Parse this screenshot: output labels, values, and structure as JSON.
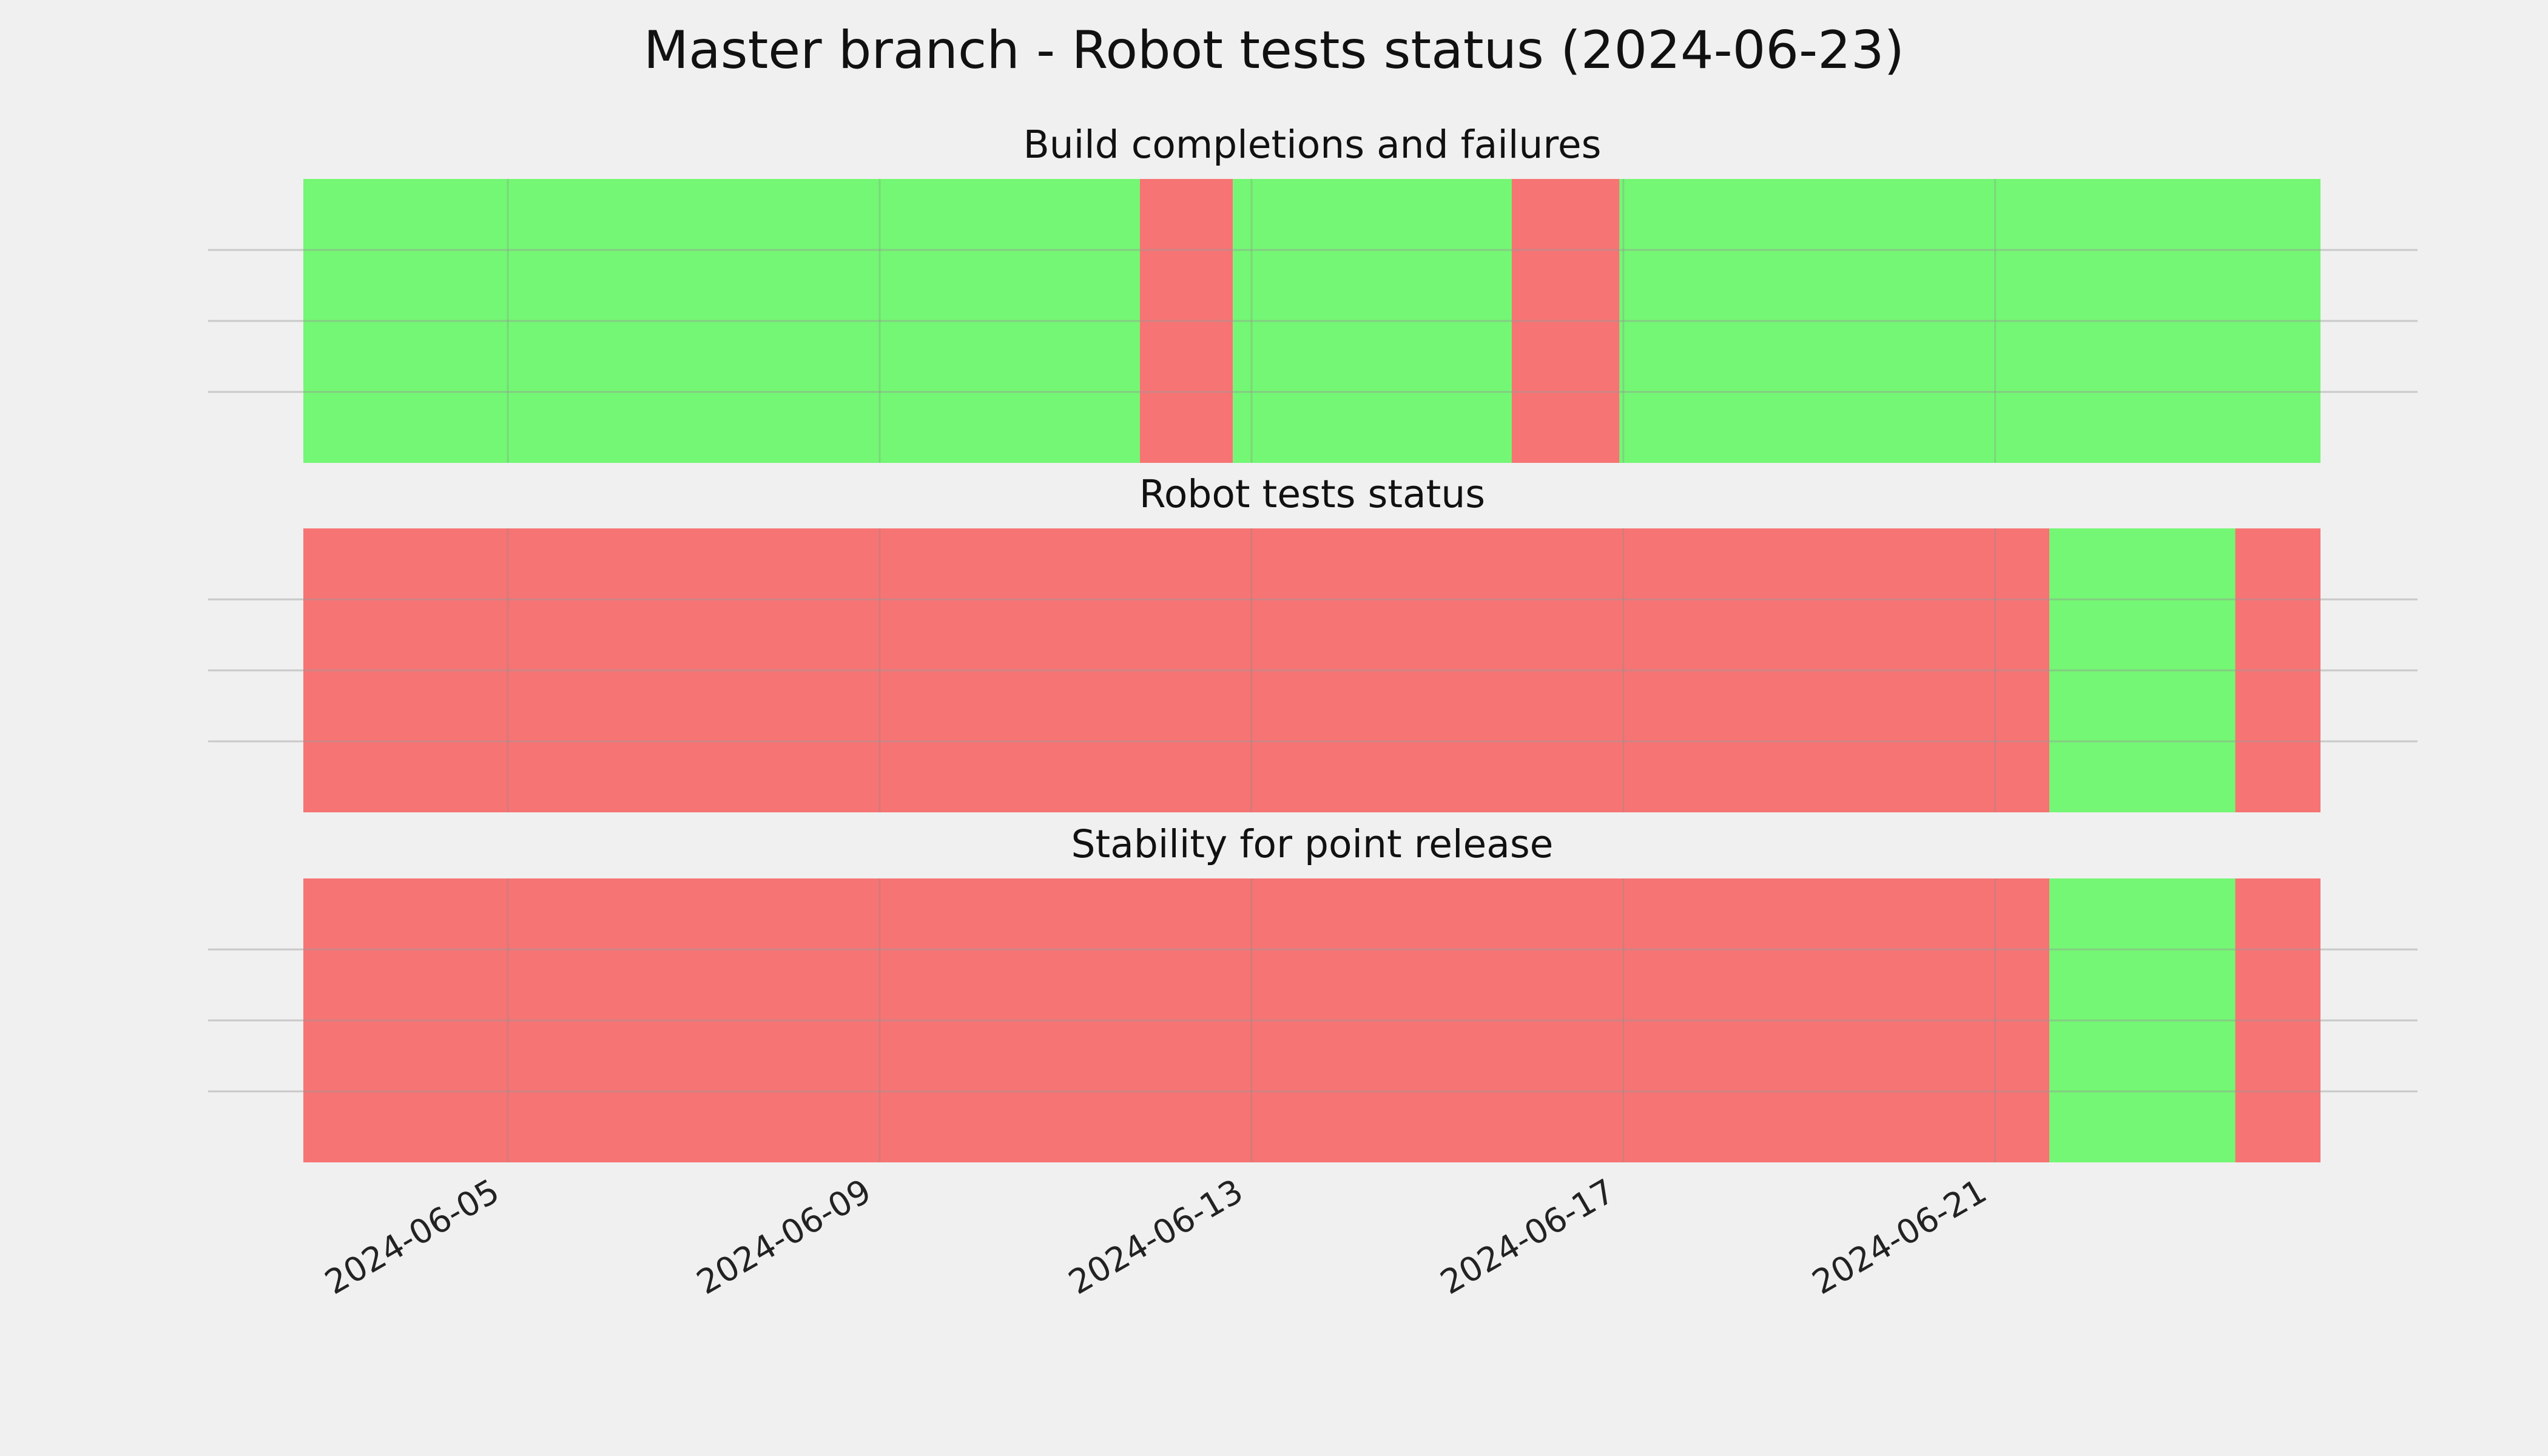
{
  "chart_data": {
    "type": "timeline",
    "title": "Master branch - Robot tests status (2024-06-23)",
    "x_axis": {
      "type": "date",
      "range": [
        "2024-06-02T19:12",
        "2024-06-24T12:00"
      ],
      "ticks": [
        "2024-06-05",
        "2024-06-09",
        "2024-06-13",
        "2024-06-17",
        "2024-06-21"
      ],
      "tick_labels": [
        "2024-06-05",
        "2024-06-09",
        "2024-06-13",
        "2024-06-17",
        "2024-06-21"
      ]
    },
    "grid": true,
    "status_colors": {
      "pass": "#74f774",
      "fail": "#f77474"
    },
    "panels": [
      {
        "title": "Build completions and failures",
        "segments": [
          {
            "start": "2024-06-02T19:12",
            "end": "2024-06-11T19:12",
            "status": "pass"
          },
          {
            "start": "2024-06-11T19:12",
            "end": "2024-06-12T19:12",
            "status": "fail"
          },
          {
            "start": "2024-06-12T19:12",
            "end": "2024-06-15T19:12",
            "status": "pass"
          },
          {
            "start": "2024-06-15T19:12",
            "end": "2024-06-16T23:00",
            "status": "fail"
          },
          {
            "start": "2024-06-16T23:00",
            "end": "2024-06-24T12:00",
            "status": "pass"
          }
        ]
      },
      {
        "title": "Robot tests status",
        "segments": [
          {
            "start": "2024-06-02T19:12",
            "end": "2024-06-21T14:00",
            "status": "fail"
          },
          {
            "start": "2024-06-21T14:00",
            "end": "2024-06-23T14:00",
            "status": "pass"
          },
          {
            "start": "2024-06-23T14:00",
            "end": "2024-06-24T12:00",
            "status": "fail"
          }
        ]
      },
      {
        "title": "Stability for point release",
        "segments": [
          {
            "start": "2024-06-02T19:12",
            "end": "2024-06-21T14:00",
            "status": "fail"
          },
          {
            "start": "2024-06-21T14:00",
            "end": "2024-06-23T14:00",
            "status": "pass"
          },
          {
            "start": "2024-06-23T14:00",
            "end": "2024-06-24T12:00",
            "status": "fail"
          }
        ]
      }
    ]
  }
}
